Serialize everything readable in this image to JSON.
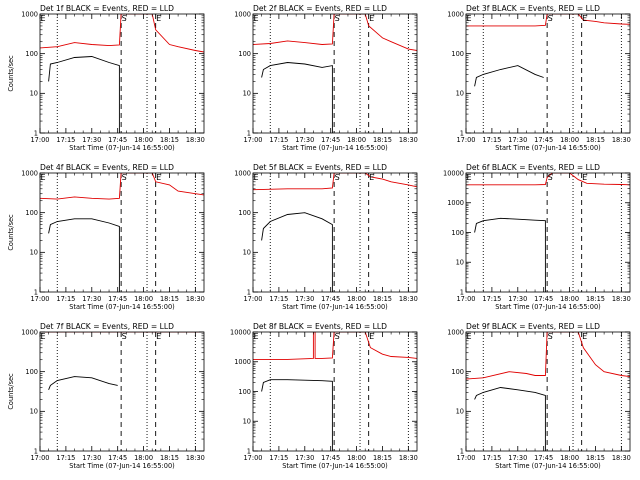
{
  "figure": {
    "xlim": [
      "17:00",
      "18:35"
    ],
    "x_ticks": [
      "17:00",
      "17:15",
      "17:30",
      "17:45",
      "18:00",
      "18:15",
      "18:30"
    ],
    "xlabel": "Start Time (07-Jun-14 16:55:00)",
    "ylabel": "Counts/sec",
    "series_colors": {
      "events": "#000000",
      "lld": "#e00000"
    }
  },
  "chart_data": [
    {
      "type": "line",
      "panel": 1,
      "title": "Det 1f BLACK = Events, RED = LLD",
      "xlabel": "Start Time (07-Jun-14 16:55:00)",
      "ylabel": "Counts/sec",
      "ylog": true,
      "ylim": [
        1,
        1000
      ],
      "yticks": [
        1,
        10,
        100,
        1000
      ],
      "ytick_labels": [
        "1",
        "10",
        "100",
        "1000"
      ],
      "markers": [
        {
          "label": "E",
          "x": "17:00"
        },
        {
          "label": "S",
          "x": "17:47"
        },
        {
          "label": "E",
          "x": "18:07"
        }
      ],
      "vlines_dotted": [
        "17:10",
        "18:02",
        "18:30"
      ],
      "vlines_dashed": [
        "17:47",
        "18:07"
      ],
      "series": [
        {
          "key": "lld",
          "x": [
            "17:00",
            "17:10",
            "17:20",
            "17:30",
            "17:40",
            "17:46",
            "17:47",
            "18:05",
            "18:07",
            "18:15",
            "18:20",
            "18:30",
            "18:35"
          ],
          "values": [
            140,
            150,
            190,
            170,
            160,
            165,
            1000,
            1000,
            400,
            170,
            150,
            120,
            110
          ]
        },
        {
          "key": "events",
          "x": [
            "17:05",
            "17:06",
            "17:10",
            "17:20",
            "17:30",
            "17:40",
            "17:46",
            "17:46"
          ],
          "values": [
            20,
            55,
            60,
            80,
            85,
            60,
            50,
            1
          ]
        }
      ]
    },
    {
      "type": "line",
      "panel": 2,
      "title": "Det 2f BLACK = Events, RED = LLD",
      "xlabel": "Start Time (07-Jun-14 16:55:00)",
      "ylabel": "",
      "ylog": true,
      "ylim": [
        1,
        1000
      ],
      "yticks": [
        1,
        10,
        100,
        1000
      ],
      "ytick_labels": [
        "1",
        "10",
        "100",
        "1000"
      ],
      "markers": [
        {
          "label": "E",
          "x": "17:00"
        },
        {
          "label": "S",
          "x": "17:47"
        },
        {
          "label": "E",
          "x": "18:07"
        }
      ],
      "vlines_dotted": [
        "17:10",
        "18:02",
        "18:30"
      ],
      "vlines_dashed": [
        "17:47",
        "18:07"
      ],
      "series": [
        {
          "key": "lld",
          "x": [
            "17:00",
            "17:10",
            "17:20",
            "17:30",
            "17:40",
            "17:46",
            "17:47",
            "18:05",
            "18:07",
            "18:15",
            "18:20",
            "18:30",
            "18:35"
          ],
          "values": [
            170,
            180,
            210,
            190,
            170,
            175,
            1000,
            1000,
            500,
            250,
            200,
            130,
            120
          ]
        },
        {
          "key": "events",
          "x": [
            "17:05",
            "17:06",
            "17:10",
            "17:20",
            "17:30",
            "17:40",
            "17:46",
            "17:46"
          ],
          "values": [
            25,
            40,
            50,
            60,
            55,
            45,
            50,
            1
          ]
        }
      ]
    },
    {
      "type": "line",
      "panel": 3,
      "title": "Det 3f BLACK = Events, RED = LLD",
      "xlabel": "Start Time (07-Jun-14 16:55:00)",
      "ylabel": "",
      "ylog": true,
      "ylim": [
        1,
        1000
      ],
      "yticks": [
        1,
        10,
        100,
        1000
      ],
      "ytick_labels": [
        "1",
        "10",
        "100",
        "1000"
      ],
      "markers": [
        {
          "label": "E",
          "x": "17:00"
        },
        {
          "label": "S",
          "x": "17:47"
        },
        {
          "label": "E",
          "x": "18:07"
        }
      ],
      "vlines_dotted": [
        "17:10",
        "18:02",
        "18:30"
      ],
      "vlines_dashed": [
        "17:47",
        "18:07"
      ],
      "series": [
        {
          "key": "lld",
          "x": [
            "17:00",
            "17:20",
            "17:40",
            "17:46",
            "17:47",
            "18:05",
            "18:08",
            "18:15",
            "18:20",
            "18:30",
            "18:35"
          ],
          "values": [
            500,
            500,
            500,
            520,
            1000,
            1000,
            700,
            650,
            600,
            560,
            550
          ]
        },
        {
          "key": "events",
          "x": [
            "17:05",
            "17:06",
            "17:10",
            "17:20",
            "17:30",
            "17:40",
            "17:45"
          ],
          "values": [
            15,
            25,
            30,
            40,
            50,
            30,
            25
          ]
        }
      ]
    },
    {
      "type": "line",
      "panel": 4,
      "title": "Det 4f BLACK = Events, RED = LLD",
      "xlabel": "Start Time (07-Jun-14 16:55:00)",
      "ylabel": "Counts/sec",
      "ylog": true,
      "ylim": [
        1,
        1000
      ],
      "yticks": [
        1,
        10,
        100,
        1000
      ],
      "ytick_labels": [
        "1",
        "10",
        "100",
        "1000"
      ],
      "markers": [
        {
          "label": "E",
          "x": "17:00"
        },
        {
          "label": "S",
          "x": "17:47"
        },
        {
          "label": "E",
          "x": "18:07"
        }
      ],
      "vlines_dotted": [
        "17:10",
        "18:02",
        "18:30"
      ],
      "vlines_dashed": [
        "17:47",
        "18:07"
      ],
      "series": [
        {
          "key": "lld",
          "x": [
            "17:00",
            "17:10",
            "17:20",
            "17:30",
            "17:40",
            "17:46",
            "17:47",
            "18:05",
            "18:07",
            "18:15",
            "18:20",
            "18:30",
            "18:35"
          ],
          "values": [
            230,
            220,
            250,
            230,
            220,
            230,
            1000,
            1000,
            600,
            500,
            350,
            300,
            280
          ]
        },
        {
          "key": "events",
          "x": [
            "17:05",
            "17:06",
            "17:10",
            "17:20",
            "17:30",
            "17:40",
            "17:46",
            "17:46"
          ],
          "values": [
            30,
            50,
            60,
            70,
            70,
            55,
            45,
            1
          ]
        }
      ]
    },
    {
      "type": "line",
      "panel": 5,
      "title": "Det 5f BLACK = Events, RED = LLD",
      "xlabel": "Start Time (07-Jun-14 16:55:00)",
      "ylabel": "",
      "ylog": true,
      "ylim": [
        1,
        1000
      ],
      "yticks": [
        1,
        10,
        100,
        1000
      ],
      "ytick_labels": [
        "1",
        "10",
        "100",
        "1000"
      ],
      "markers": [
        {
          "label": "E",
          "x": "17:00"
        },
        {
          "label": "S",
          "x": "17:47"
        },
        {
          "label": "E",
          "x": "18:07"
        }
      ],
      "vlines_dotted": [
        "17:10",
        "18:02",
        "18:30"
      ],
      "vlines_dashed": [
        "17:47",
        "18:07"
      ],
      "series": [
        {
          "key": "lld",
          "x": [
            "17:00",
            "17:20",
            "17:40",
            "17:46",
            "17:47",
            "18:05",
            "18:08",
            "18:15",
            "18:20",
            "18:30",
            "18:35"
          ],
          "values": [
            380,
            400,
            400,
            420,
            1000,
            1000,
            800,
            700,
            600,
            500,
            450
          ]
        },
        {
          "key": "events",
          "x": [
            "17:05",
            "17:06",
            "17:10",
            "17:20",
            "17:30",
            "17:40",
            "17:46",
            "17:46"
          ],
          "values": [
            20,
            40,
            60,
            90,
            100,
            70,
            50,
            1
          ]
        }
      ]
    },
    {
      "type": "line",
      "panel": 6,
      "title": "Det 6f BLACK = Events, RED = LLD",
      "xlabel": "Start Time (07-Jun-14 16:55:00)",
      "ylabel": "",
      "ylog": true,
      "ylim": [
        1,
        10000
      ],
      "yticks": [
        1,
        10,
        100,
        1000,
        10000
      ],
      "ytick_labels": [
        "1",
        "10",
        "100",
        "1000",
        "10000"
      ],
      "markers": [
        {
          "label": "E",
          "x": "17:00"
        },
        {
          "label": "S",
          "x": "17:47"
        },
        {
          "label": "E",
          "x": "18:07"
        }
      ],
      "vlines_dotted": [
        "17:10",
        "18:02",
        "18:30"
      ],
      "vlines_dashed": [
        "17:47",
        "18:07"
      ],
      "series": [
        {
          "key": "lld",
          "x": [
            "17:00",
            "17:20",
            "17:40",
            "17:46",
            "17:47",
            "17:50",
            "18:00",
            "18:05",
            "18:10",
            "18:20",
            "18:30",
            "18:35"
          ],
          "values": [
            4000,
            4000,
            4000,
            4100,
            7000,
            10000,
            10000,
            6000,
            4500,
            4200,
            4100,
            4000
          ]
        },
        {
          "key": "events",
          "x": [
            "17:05",
            "17:06",
            "17:10",
            "17:20",
            "17:30",
            "17:40",
            "17:46",
            "17:46"
          ],
          "values": [
            100,
            200,
            250,
            300,
            280,
            260,
            250,
            1
          ]
        }
      ]
    },
    {
      "type": "line",
      "panel": 7,
      "title": "Det 7f BLACK = Events, RED = LLD",
      "xlabel": "Start Time (07-Jun-14 16:55:00)",
      "ylabel": "Counts/sec",
      "ylog": true,
      "ylim": [
        1,
        1000
      ],
      "yticks": [
        1,
        10,
        100,
        1000
      ],
      "ytick_labels": [
        "1",
        "10",
        "100",
        "1000"
      ],
      "markers": [
        {
          "label": "E",
          "x": "17:00"
        },
        {
          "label": "S",
          "x": "17:47"
        },
        {
          "label": "E",
          "x": "18:07"
        }
      ],
      "vlines_dotted": [
        "17:10",
        "18:02",
        "18:30"
      ],
      "vlines_dashed": [
        "17:47",
        "18:07"
      ],
      "series": [
        {
          "key": "lld",
          "x": [
            "17:00",
            "17:20",
            "17:40",
            "17:47",
            "18:10",
            "18:20",
            "18:35"
          ],
          "values": [
            1000,
            1000,
            1000,
            1000,
            1000,
            1000,
            1000
          ]
        },
        {
          "key": "events",
          "x": [
            "17:05",
            "17:06",
            "17:10",
            "17:20",
            "17:30",
            "17:40",
            "17:45"
          ],
          "values": [
            35,
            45,
            60,
            75,
            70,
            50,
            45
          ]
        }
      ]
    },
    {
      "type": "line",
      "panel": 8,
      "title": "Det 8f BLACK = Events, RED = LLD",
      "xlabel": "Start Time (07-Jun-14 16:55:00)",
      "ylabel": "",
      "ylog": true,
      "ylim": [
        1,
        10000
      ],
      "yticks": [
        1,
        10,
        100,
        1000,
        10000
      ],
      "ytick_labels": [
        "1",
        "10",
        "100",
        "1000",
        "10000"
      ],
      "markers": [
        {
          "label": "E",
          "x": "17:00"
        },
        {
          "label": "S",
          "x": "17:47"
        },
        {
          "label": "E",
          "x": "18:07"
        }
      ],
      "vlines_dotted": [
        "17:10",
        "18:02",
        "18:30"
      ],
      "vlines_dashed": [
        "17:47",
        "18:07"
      ],
      "series": [
        {
          "key": "lld",
          "x": [
            "17:00",
            "17:20",
            "17:35",
            "17:35",
            "17:36",
            "17:36",
            "17:40",
            "17:46",
            "17:47",
            "18:05",
            "18:08",
            "18:15",
            "18:20",
            "18:30",
            "18:35"
          ],
          "values": [
            1200,
            1200,
            1300,
            10000,
            10000,
            1300,
            1300,
            1350,
            10000,
            10000,
            3000,
            1800,
            1500,
            1400,
            1300
          ]
        },
        {
          "key": "events",
          "x": [
            "17:05",
            "17:06",
            "17:10",
            "17:20",
            "17:30",
            "17:40",
            "17:46",
            "17:46"
          ],
          "values": [
            100,
            200,
            250,
            250,
            240,
            230,
            220,
            1
          ]
        }
      ]
    },
    {
      "type": "line",
      "panel": 9,
      "title": "Det 9f BLACK = Events, RED = LLD",
      "xlabel": "Start Time (07-Jun-14 16:55:00)",
      "ylabel": "",
      "ylog": true,
      "ylim": [
        1,
        1000
      ],
      "yticks": [
        1,
        10,
        100,
        1000
      ],
      "ytick_labels": [
        "1",
        "10",
        "100",
        "1000"
      ],
      "markers": [
        {
          "label": "E",
          "x": "17:00"
        },
        {
          "label": "S",
          "x": "17:47"
        },
        {
          "label": "E",
          "x": "18:07"
        }
      ],
      "vlines_dotted": [
        "17:10",
        "18:02",
        "18:30"
      ],
      "vlines_dashed": [
        "17:47",
        "18:07"
      ],
      "series": [
        {
          "key": "lld",
          "x": [
            "17:00",
            "17:10",
            "17:25",
            "17:35",
            "17:40",
            "17:46",
            "17:47",
            "18:05",
            "18:08",
            "18:15",
            "18:20",
            "18:30",
            "18:35"
          ],
          "values": [
            65,
            70,
            100,
            90,
            80,
            80,
            1000,
            1000,
            400,
            150,
            100,
            80,
            75
          ]
        },
        {
          "key": "events",
          "x": [
            "17:05",
            "17:06",
            "17:10",
            "17:20",
            "17:30",
            "17:40",
            "17:46",
            "17:46"
          ],
          "values": [
            20,
            25,
            30,
            40,
            35,
            30,
            25,
            1
          ]
        }
      ]
    }
  ]
}
